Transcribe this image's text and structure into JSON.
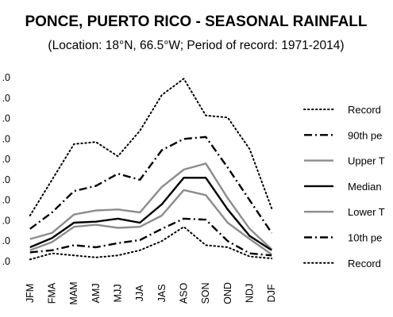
{
  "chart_data": {
    "type": "line",
    "title": "PONCE, PUERTO RICO - SEASONAL RAINFALL",
    "subtitle": "(Location: 18°N, 66.5°W; Period of record: 1971-2014)",
    "categories": [
      "JFM",
      "FMA",
      "MAM",
      "AMJ",
      "MJJ",
      "JJA",
      "JAS",
      "ASO",
      "SON",
      "OND",
      "NDJ",
      "DJF"
    ],
    "y_tick_labels": [
      ".0",
      ".0",
      ".0",
      ".0",
      ".0",
      ".0",
      ".0",
      ".0",
      ".0",
      ".0"
    ],
    "ylim": [
      0,
      18
    ],
    "grid": false,
    "legend_position": "right",
    "series": [
      {
        "name": "Record",
        "style": "dotted",
        "color": "#000000",
        "values": [
          4.5,
          8.0,
          11.5,
          11.7,
          10.3,
          12.8,
          16.3,
          17.9,
          14.3,
          14.1,
          11.0,
          5.2
        ]
      },
      {
        "name": "90th pe",
        "style": "dashdot",
        "color": "#000000",
        "values": [
          3.2,
          4.8,
          6.9,
          7.4,
          8.6,
          8.0,
          10.9,
          12.0,
          12.2,
          9.2,
          6.0,
          2.8
        ]
      },
      {
        "name": "Upper T",
        "style": "solid",
        "color": "#8c8c8c",
        "values": [
          2.2,
          2.8,
          4.6,
          5.0,
          5.1,
          4.8,
          7.3,
          9.0,
          9.6,
          6.2,
          3.2,
          1.2
        ]
      },
      {
        "name": "Median",
        "style": "solid",
        "color": "#000000",
        "values": [
          1.4,
          2.3,
          3.8,
          3.9,
          4.2,
          3.8,
          5.6,
          8.2,
          8.2,
          5.1,
          2.5,
          1.1
        ]
      },
      {
        "name": "Lower T",
        "style": "solid",
        "color": "#8c8c8c",
        "values": [
          1.1,
          1.9,
          3.4,
          3.6,
          3.3,
          3.4,
          4.5,
          7.0,
          6.5,
          3.8,
          2.2,
          0.7
        ]
      },
      {
        "name": "10th pe",
        "style": "dashdot",
        "color": "#000000",
        "values": [
          0.9,
          1.1,
          1.6,
          1.4,
          1.8,
          2.1,
          3.2,
          4.2,
          4.1,
          2.0,
          0.8,
          0.6
        ]
      },
      {
        "name": "Record",
        "style": "dotted",
        "color": "#000000",
        "values": [
          0.2,
          0.8,
          0.6,
          0.4,
          0.6,
          1.1,
          2.0,
          3.4,
          1.6,
          1.4,
          0.5,
          0.3
        ]
      }
    ]
  }
}
